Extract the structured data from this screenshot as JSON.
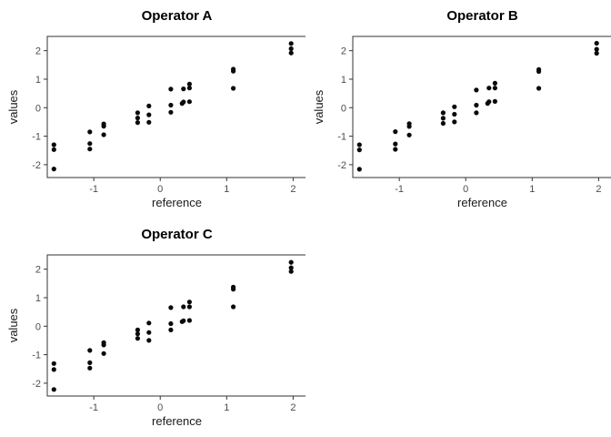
{
  "style": {
    "background_color": "#ffffff",
    "panel_border_color": "#333333",
    "tick_color": "#333333",
    "tick_label_color": "#4d4d4d",
    "axis_title_color": "#1a1a1a",
    "title_color": "#000000",
    "point_color": "#0a0a0a"
  },
  "chart_data": [
    {
      "id": "operator-a",
      "type": "scatter",
      "title": "Operator A",
      "xlabel": "reference",
      "ylabel": "values",
      "xlim": [
        -1.7,
        2.2
      ],
      "ylim": [
        -2.45,
        2.5
      ],
      "x_ticks": [
        -1,
        0,
        1,
        2
      ],
      "y_ticks": [
        -2,
        -1,
        0,
        1,
        2
      ],
      "grid": false,
      "legend": false,
      "points": [
        [
          -1.6,
          -1.3
        ],
        [
          -1.6,
          -1.47
        ],
        [
          -1.6,
          -2.15
        ],
        [
          -1.06,
          -0.85
        ],
        [
          -1.06,
          -1.26
        ],
        [
          -1.06,
          -1.45
        ],
        [
          -0.85,
          -0.57
        ],
        [
          -0.85,
          -0.65
        ],
        [
          -0.85,
          -0.95
        ],
        [
          -0.34,
          -0.18
        ],
        [
          -0.34,
          -0.36
        ],
        [
          -0.34,
          -0.52
        ],
        [
          -0.17,
          0.06
        ],
        [
          -0.17,
          -0.25
        ],
        [
          -0.17,
          -0.51
        ],
        [
          0.16,
          0.65
        ],
        [
          0.16,
          0.09
        ],
        [
          0.16,
          -0.16
        ],
        [
          0.35,
          0.66
        ],
        [
          0.35,
          0.2
        ],
        [
          0.33,
          0.15
        ],
        [
          0.44,
          0.83
        ],
        [
          0.44,
          0.69
        ],
        [
          0.44,
          0.21
        ],
        [
          1.1,
          1.35
        ],
        [
          1.1,
          1.28
        ],
        [
          1.1,
          0.68
        ],
        [
          1.97,
          2.25
        ],
        [
          1.97,
          2.07
        ],
        [
          1.97,
          1.92
        ]
      ]
    },
    {
      "id": "operator-b",
      "type": "scatter",
      "title": "Operator B",
      "xlabel": "reference",
      "ylabel": "values",
      "xlim": [
        -1.7,
        2.2
      ],
      "ylim": [
        -2.45,
        2.5
      ],
      "x_ticks": [
        -1,
        0,
        1,
        2
      ],
      "y_ticks": [
        -2,
        -1,
        0,
        1,
        2
      ],
      "grid": false,
      "legend": false,
      "points": [
        [
          -1.6,
          -1.3
        ],
        [
          -1.6,
          -1.48
        ],
        [
          -1.6,
          -2.16
        ],
        [
          -1.06,
          -0.84
        ],
        [
          -1.06,
          -1.27
        ],
        [
          -1.06,
          -1.46
        ],
        [
          -0.85,
          -0.56
        ],
        [
          -0.85,
          -0.66
        ],
        [
          -0.85,
          -0.96
        ],
        [
          -0.34,
          -0.18
        ],
        [
          -0.34,
          -0.37
        ],
        [
          -0.34,
          -0.55
        ],
        [
          -0.17,
          0.03
        ],
        [
          -0.17,
          -0.23
        ],
        [
          -0.17,
          -0.5
        ],
        [
          0.16,
          0.62
        ],
        [
          0.16,
          0.09
        ],
        [
          0.16,
          -0.18
        ],
        [
          0.35,
          0.69
        ],
        [
          0.35,
          0.21
        ],
        [
          0.33,
          0.15
        ],
        [
          0.44,
          0.86
        ],
        [
          0.44,
          0.69
        ],
        [
          0.44,
          0.22
        ],
        [
          1.1,
          1.34
        ],
        [
          1.1,
          1.27
        ],
        [
          1.1,
          0.68
        ],
        [
          1.97,
          2.26
        ],
        [
          1.97,
          2.05
        ],
        [
          1.97,
          1.91
        ]
      ]
    },
    {
      "id": "operator-c",
      "type": "scatter",
      "title": "Operator C",
      "xlabel": "reference",
      "ylabel": "values",
      "xlim": [
        -1.7,
        2.2
      ],
      "ylim": [
        -2.45,
        2.5
      ],
      "x_ticks": [
        -1,
        0,
        1,
        2
      ],
      "y_ticks": [
        -2,
        -1,
        0,
        1,
        2
      ],
      "grid": false,
      "legend": false,
      "points": [
        [
          -1.6,
          -1.31
        ],
        [
          -1.6,
          -1.52
        ],
        [
          -1.6,
          -2.22
        ],
        [
          -1.06,
          -0.85
        ],
        [
          -1.06,
          -1.28
        ],
        [
          -1.06,
          -1.47
        ],
        [
          -0.85,
          -0.58
        ],
        [
          -0.85,
          -0.66
        ],
        [
          -0.85,
          -0.96
        ],
        [
          -0.34,
          -0.13
        ],
        [
          -0.34,
          -0.27
        ],
        [
          -0.34,
          -0.43
        ],
        [
          -0.17,
          0.11
        ],
        [
          -0.17,
          -0.22
        ],
        [
          -0.17,
          -0.5
        ],
        [
          0.16,
          0.65
        ],
        [
          0.16,
          0.09
        ],
        [
          0.16,
          -0.13
        ],
        [
          0.35,
          0.68
        ],
        [
          0.35,
          0.19
        ],
        [
          0.33,
          0.16
        ],
        [
          0.44,
          0.85
        ],
        [
          0.44,
          0.68
        ],
        [
          0.44,
          0.2
        ],
        [
          1.1,
          1.37
        ],
        [
          1.1,
          1.3
        ],
        [
          1.1,
          0.68
        ],
        [
          1.97,
          2.24
        ],
        [
          1.97,
          2.05
        ],
        [
          1.97,
          1.92
        ]
      ]
    }
  ]
}
